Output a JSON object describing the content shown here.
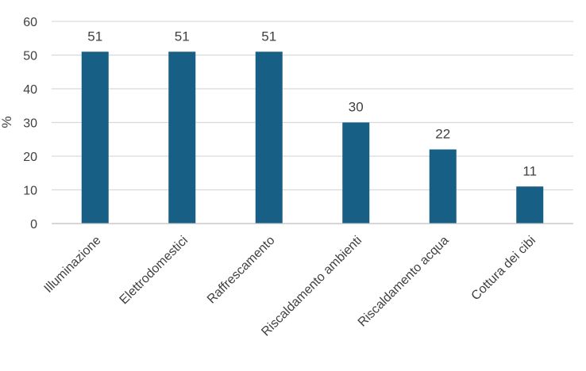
{
  "chart_data": {
    "type": "bar",
    "categories": [
      "Illuminazione",
      "Elettrodomestici",
      "Raffrescamento",
      "Riscaldamento ambienti",
      "Riscaldamento acqua",
      "Cottura dei cibi"
    ],
    "values": [
      51,
      51,
      51,
      30,
      22,
      11
    ],
    "data_labels": [
      "51",
      "51",
      "51",
      "30",
      "22",
      "11"
    ],
    "ylabel": "%",
    "ylim": [
      0,
      60
    ],
    "yticks": [
      "0",
      "10",
      "20",
      "30",
      "40",
      "50",
      "60"
    ],
    "grid": true,
    "legend": "none",
    "bar_color": "#175f84"
  }
}
